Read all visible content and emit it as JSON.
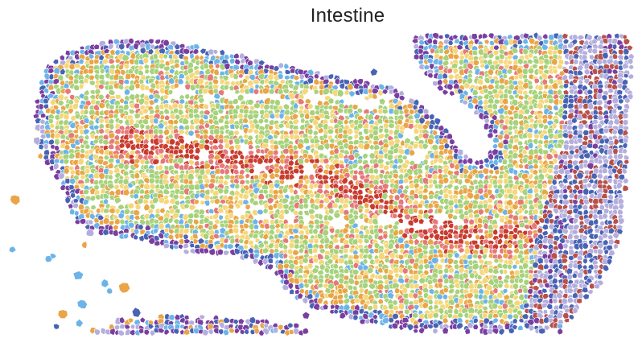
{
  "figure": {
    "title": "Intestine"
  },
  "palette": {
    "purple": "#7a3ea0",
    "blue": "#4863b4",
    "light_blue": "#6cb4e8",
    "lavender": "#b3aedd",
    "orange": "#e9a547",
    "yellow": "#f5d77b",
    "green": "#a6d27b",
    "pink": "#e5787a",
    "red": "#c83b2e",
    "brown_red": "#b8504a"
  }
}
